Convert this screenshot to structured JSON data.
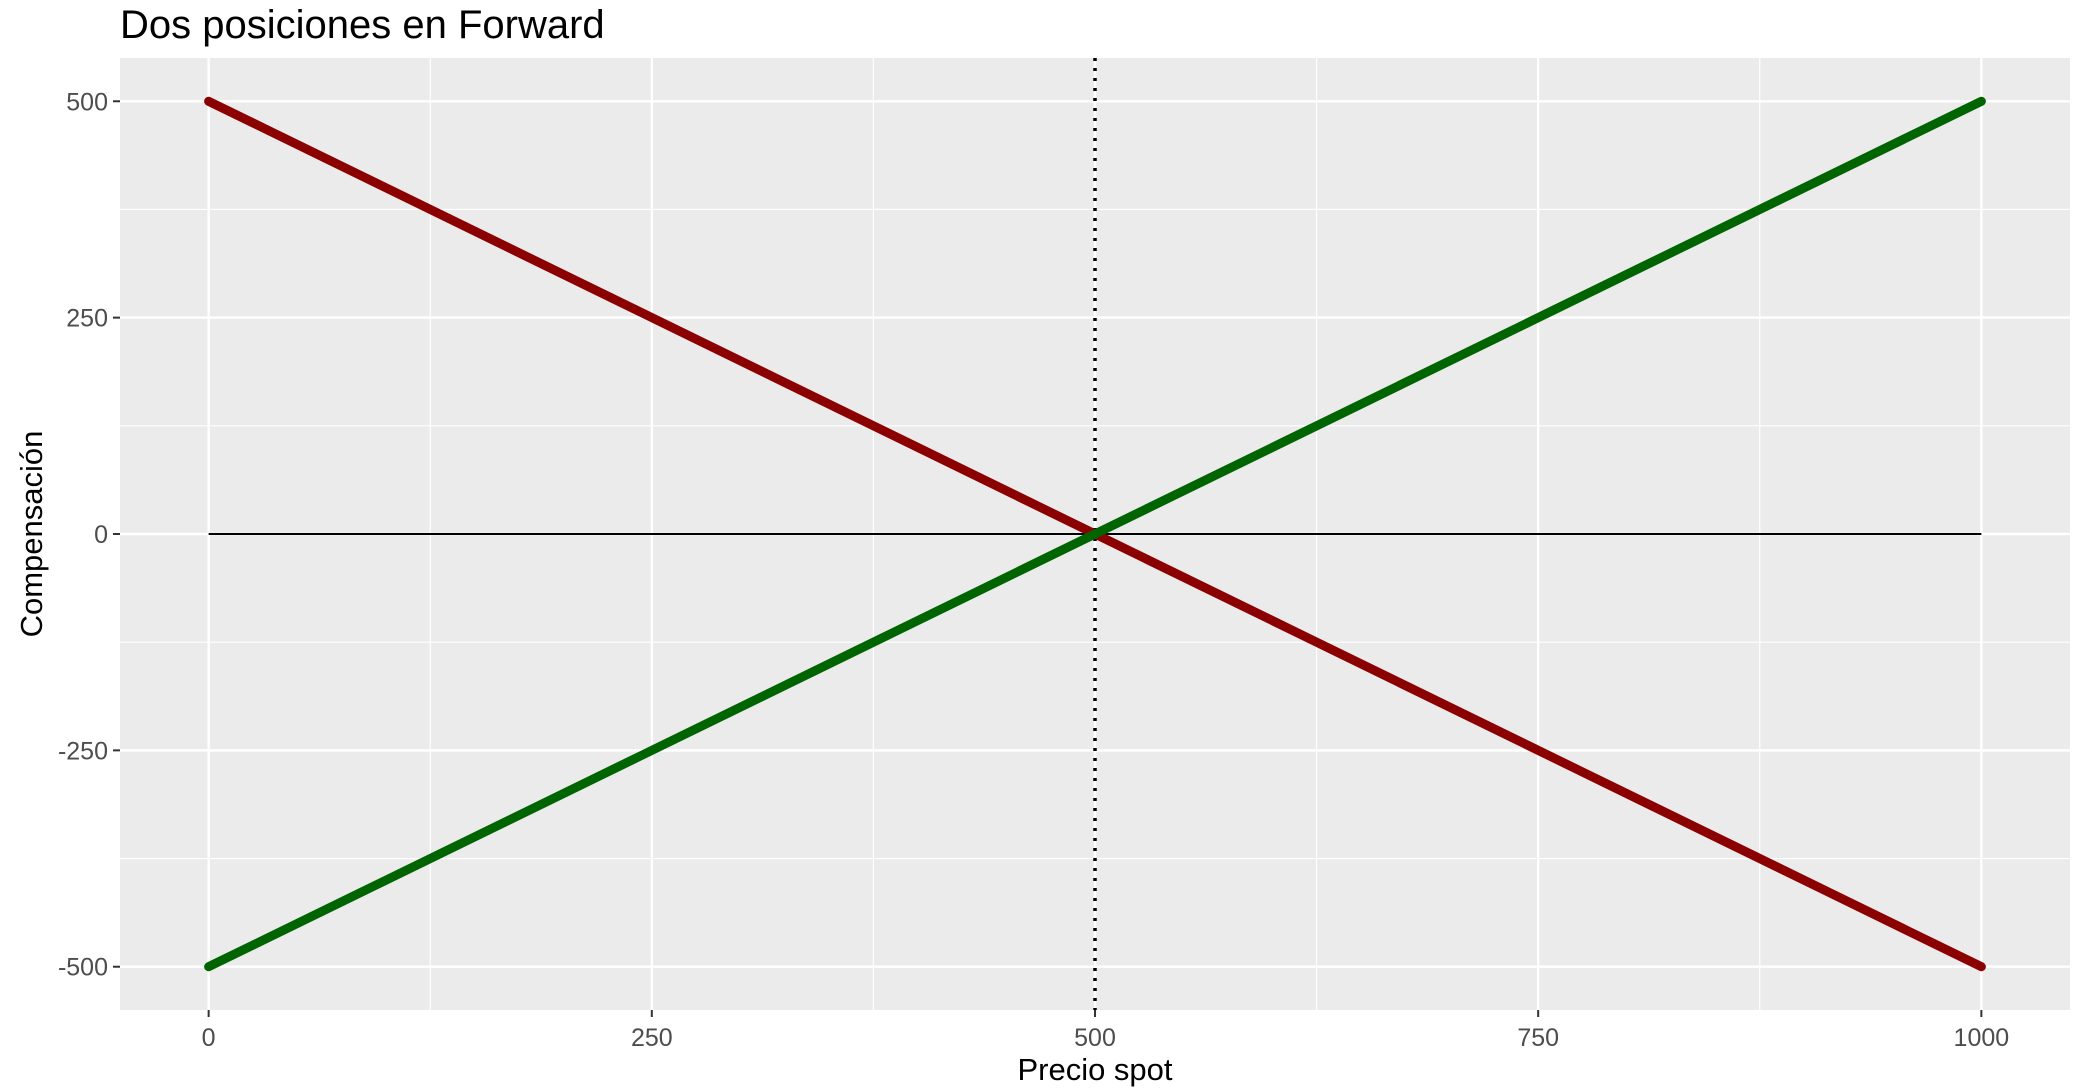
{
  "chart_data": {
    "type": "line",
    "title": "Dos posiciones en Forward",
    "xlabel": "Precio spot",
    "ylabel": "Compensación",
    "xlim": [
      -50,
      1050
    ],
    "ylim": [
      -550,
      550
    ],
    "x_ticks": [
      0,
      250,
      500,
      750,
      1000
    ],
    "x_tick_labels": [
      "0",
      "250",
      "500",
      "750",
      "1000"
    ],
    "y_ticks": [
      -500,
      -250,
      0,
      250,
      500
    ],
    "y_tick_labels": [
      "-500",
      "-250",
      "0",
      "250",
      "500"
    ],
    "grid": true,
    "legend": "none",
    "background": "#ebebeb",
    "series": [
      {
        "x": [
          0,
          1000
        ],
        "y": [
          500,
          -500
        ],
        "color": "#8b0000"
      },
      {
        "x": [
          0,
          1000
        ],
        "y": [
          -500,
          500
        ],
        "color": "#006400"
      }
    ],
    "reference_lines": [
      {
        "orientation": "horizontal",
        "value": 0,
        "style": "solid",
        "color": "#000000"
      },
      {
        "orientation": "vertical",
        "value": 500,
        "style": "dotted",
        "color": "#000000"
      }
    ]
  }
}
